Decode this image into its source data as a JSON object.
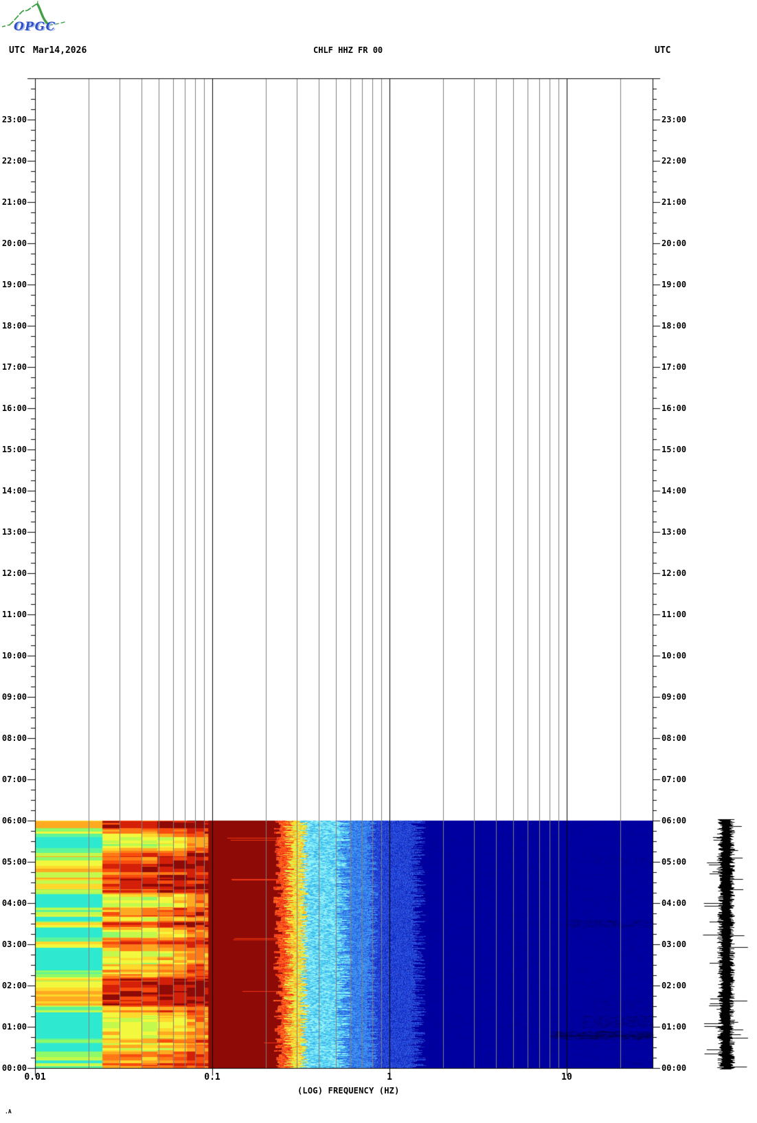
{
  "logo": {
    "text": "OPGC"
  },
  "header": {
    "utc_left": "UTC",
    "date": "Mar14,2026",
    "title": "CHLF HHZ FR 00",
    "utc_right": "UTC"
  },
  "footer": {
    "mark": ".A"
  },
  "x_axis": {
    "label": "(LOG) FREQUENCY (HZ)",
    "tick_labels": [
      "0.01",
      "0.1",
      "1",
      "10"
    ],
    "tick_values_hz": [
      0.01,
      0.1,
      1,
      10
    ]
  },
  "y_axis": {
    "unit": "UTC",
    "hour_labels": [
      "00:00",
      "01:00",
      "02:00",
      "03:00",
      "04:00",
      "05:00",
      "06:00",
      "07:00",
      "08:00",
      "09:00",
      "10:00",
      "11:00",
      "12:00",
      "13:00",
      "14:00",
      "15:00",
      "16:00",
      "17:00",
      "18:00",
      "19:00",
      "20:00",
      "21:00",
      "22:00",
      "23:00"
    ],
    "minor_tick_minutes": 15
  },
  "chart_data": {
    "type": "heatmap",
    "subtype": "seismic-spectrogram",
    "title": "CHLF HHZ FR 00",
    "xlabel": "(LOG) FREQUENCY (HZ)",
    "x_scale": "log",
    "x_range_hz": [
      0.01,
      30.5
    ],
    "y_range_hours_utc": [
      0,
      24
    ],
    "grid": true,
    "x_gridlines_hz": [
      0.02,
      0.03,
      0.04,
      0.05,
      0.06,
      0.07,
      0.08,
      0.09,
      0.2,
      0.3,
      0.4,
      0.5,
      0.6,
      0.7,
      0.8,
      0.9,
      2,
      3,
      4,
      5,
      6,
      7,
      8,
      9,
      20
    ],
    "x_major_lines_hz": [
      0.1,
      1,
      10
    ],
    "data_time_utc": {
      "start": "00:00",
      "end": "06:04"
    },
    "hot_palette": [
      "#2fe8d0",
      "#5ef49a",
      "#8ef969",
      "#c2f94c",
      "#f2f83e",
      "#ffd82c",
      "#ffaa20",
      "#ff7a16",
      "#f74c0e",
      "#d42008",
      "#8e0a06"
    ],
    "striped_bands": [
      {
        "f0": 0.01,
        "f1": 0.024,
        "base": -0.22,
        "scale": 0.75
      },
      {
        "f0": 0.024,
        "f1": 0.03,
        "base": 0.34,
        "scale": 0.55
      },
      {
        "f0": 0.03,
        "f1": 0.04,
        "base": 0.36,
        "scale": 0.55
      },
      {
        "f0": 0.04,
        "f1": 0.049,
        "base": 0.33,
        "scale": 0.58
      },
      {
        "f0": 0.049,
        "f1": 0.06,
        "base": 0.42,
        "scale": 0.55
      },
      {
        "f0": 0.06,
        "f1": 0.072,
        "base": 0.46,
        "scale": 0.52
      },
      {
        "f0": 0.072,
        "f1": 0.08,
        "base": 0.62,
        "scale": 0.38
      },
      {
        "f0": 0.08,
        "f1": 0.09,
        "base": 0.66,
        "scale": 0.34
      },
      {
        "f0": 0.09,
        "f1": 0.095,
        "base": 0.6,
        "scale": 0.4
      }
    ],
    "maroon_block": {
      "f0": 0.095,
      "f1": 0.235,
      "color": "#8e0a06",
      "red_streak_color": "#f0350e"
    },
    "transition_zones": [
      {
        "name": "red",
        "f_end": 0.27,
        "palette": [
          "#e8280e",
          "#fa4410",
          "#ff6012"
        ]
      },
      {
        "name": "yellow",
        "f_end": 0.33,
        "palette": [
          "#ffd01e",
          "#f8ee3a",
          "#ffaa1c",
          "#c8f04c"
        ]
      },
      {
        "name": "cyan",
        "f_end": 0.55,
        "palette": [
          "#55d8f4",
          "#7deafa",
          "#36b2ea",
          "#93f2f4",
          "#45c4f0"
        ]
      },
      {
        "name": "blue",
        "f_end": 0.8,
        "palette": [
          "#2b7ce8",
          "#2162e0",
          "#3a8ff0"
        ]
      },
      {
        "name": "royal",
        "f_end": 1.45,
        "palette": [
          "#1638d2",
          "#102cc2",
          "#1d44da"
        ]
      }
    ],
    "navy_background": "#0000a0",
    "noise_patches": [
      {
        "time_start": "00:04",
        "time_end": "00:11",
        "f_start": 18,
        "f_end": 30,
        "strength": "faint"
      },
      {
        "time_start": "00:42",
        "time_end": "00:54",
        "f_start": 8,
        "f_end": 30,
        "strength": "strong"
      },
      {
        "time_start": "00:59",
        "time_end": "01:17",
        "f_start": 12,
        "f_end": 30,
        "strength": "medium"
      },
      {
        "time_start": "01:24",
        "time_end": "01:39",
        "f_start": 14,
        "f_end": 30,
        "strength": "faint"
      },
      {
        "time_start": "03:24",
        "time_end": "03:36",
        "f_start": 10,
        "f_end": 30,
        "strength": "medium"
      },
      {
        "time_start": "04:58",
        "time_end": "05:06",
        "f_start": 14,
        "f_end": 30,
        "strength": "faint"
      }
    ],
    "seismogram_strip": {
      "present": true,
      "color": "#000000",
      "time_start": "00:00",
      "time_end": "06:04",
      "position": "right-margin"
    },
    "colors": {
      "gridline": "#7f7f7f",
      "major_line": "#000000",
      "axis": "#000000",
      "logo_green": "#44a048",
      "logo_blue": "#3050c8"
    }
  }
}
